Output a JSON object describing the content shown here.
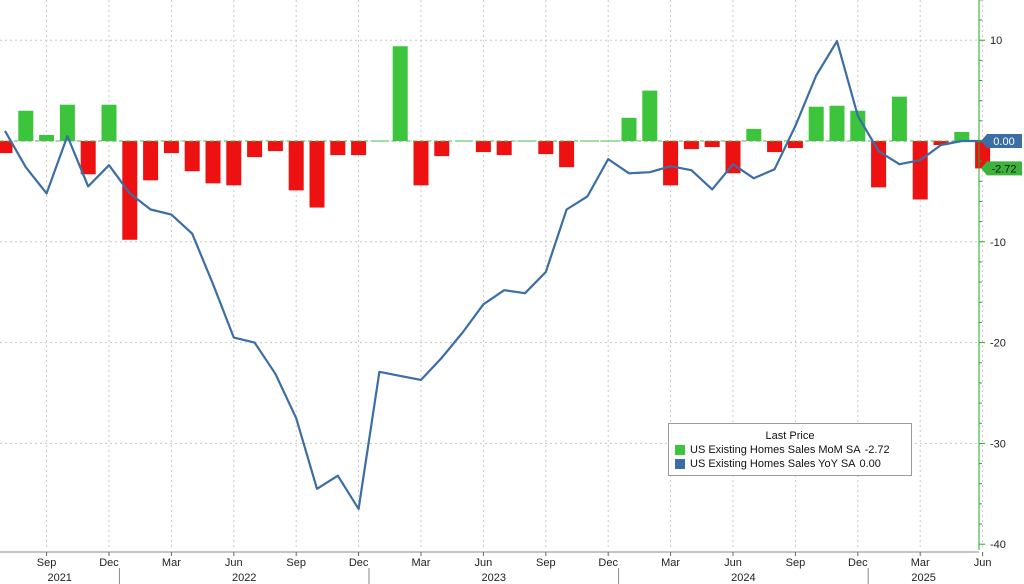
{
  "chart_data": {
    "type": "bar+line",
    "x_months": [
      "2021-07",
      "2021-08",
      "2021-09",
      "2021-10",
      "2021-11",
      "2021-12",
      "2022-01",
      "2022-02",
      "2022-03",
      "2022-04",
      "2022-05",
      "2022-06",
      "2022-07",
      "2022-08",
      "2022-09",
      "2022-10",
      "2022-11",
      "2022-12",
      "2023-01",
      "2023-02",
      "2023-03",
      "2023-04",
      "2023-05",
      "2023-06",
      "2023-07",
      "2023-08",
      "2023-09",
      "2023-10",
      "2023-11",
      "2023-12",
      "2024-01",
      "2024-02",
      "2024-03",
      "2024-04",
      "2024-05",
      "2024-06",
      "2024-07",
      "2024-08",
      "2024-09",
      "2024-10",
      "2024-11",
      "2024-12",
      "2025-01",
      "2025-02",
      "2025-03",
      "2025-04",
      "2025-05",
      "2025-06"
    ],
    "series": [
      {
        "name": "US Existing Homes Sales MoM SA",
        "kind": "bar",
        "last_value": "-2.72",
        "values": [
          -1.2,
          3.0,
          0.6,
          3.6,
          -3.3,
          3.6,
          -9.8,
          -3.9,
          -1.2,
          -3.0,
          -4.2,
          -4.4,
          -1.6,
          -1.0,
          -4.9,
          -6.6,
          -1.4,
          -1.4,
          0.0,
          9.4,
          -4.4,
          -1.5,
          0.0,
          -1.1,
          -1.4,
          0.0,
          -1.3,
          -2.6,
          0.0,
          0.0,
          2.3,
          5.0,
          -4.4,
          -0.8,
          -0.6,
          -3.2,
          1.2,
          -1.1,
          -0.7,
          3.4,
          3.5,
          3.0,
          -4.6,
          4.4,
          -5.8,
          -0.4,
          0.9,
          -2.72
        ]
      },
      {
        "name": "US Existing Homes Sales YoY SA",
        "kind": "line",
        "last_value": "0.00",
        "values": [
          1.0,
          -2.6,
          -5.2,
          0.5,
          -4.5,
          -2.4,
          -5.2,
          -6.8,
          -7.3,
          -9.2,
          -14.2,
          -19.5,
          -20.0,
          -23.1,
          -27.5,
          -34.5,
          -33.2,
          -36.5,
          -22.9,
          -23.3,
          -23.7,
          -21.5,
          -19.0,
          -16.2,
          -14.8,
          -15.1,
          -13.0,
          -6.8,
          -5.5,
          -1.8,
          -3.2,
          -3.1,
          -2.5,
          -2.9,
          -4.8,
          -2.3,
          -3.7,
          -2.8,
          1.5,
          6.5,
          9.9,
          2.5,
          -1.0,
          -2.3,
          -1.9,
          -0.4,
          0.0,
          0.0
        ]
      }
    ],
    "ylim": [
      -40,
      14
    ],
    "yticks": [
      "10",
      "0",
      "-10",
      "-20",
      "-30",
      "-40"
    ],
    "xticks": [
      {
        "month": "2021-09",
        "label": "Sep"
      },
      {
        "month": "2021-12",
        "label": "Dec"
      },
      {
        "month": "2022-03",
        "label": "Mar"
      },
      {
        "month": "2022-06",
        "label": "Jun"
      },
      {
        "month": "2022-09",
        "label": "Sep"
      },
      {
        "month": "2022-12",
        "label": "Dec"
      },
      {
        "month": "2023-03",
        "label": "Mar"
      },
      {
        "month": "2023-06",
        "label": "Jun"
      },
      {
        "month": "2023-09",
        "label": "Sep"
      },
      {
        "month": "2023-12",
        "label": "Dec"
      },
      {
        "month": "2024-03",
        "label": "Mar"
      },
      {
        "month": "2024-06",
        "label": "Jun"
      },
      {
        "month": "2024-09",
        "label": "Sep"
      },
      {
        "month": "2024-12",
        "label": "Dec"
      },
      {
        "month": "2025-03",
        "label": "Mar"
      },
      {
        "month": "2025-06",
        "label": "Jun"
      }
    ],
    "year_labels": [
      "2021",
      "2022",
      "2023",
      "2024",
      "2025"
    ],
    "grid": true,
    "legend_placement": "bottom-right",
    "colors": {
      "bar_positive": "#3cc43c",
      "bar_negative": "#ee1111",
      "line": "#3a6ea5",
      "grid": "#c8c8c8",
      "axis": "#22aa22",
      "yoy_tag": "#3a6ea5",
      "mom_tag": "#3cb43c"
    }
  },
  "legend": {
    "title": "Last Price",
    "mom_label": "US Existing Homes Sales MoM SA",
    "mom_value": "-2.72",
    "yoy_label": "US Existing Homes Sales YoY SA",
    "yoy_value": "0.00"
  },
  "tags": {
    "yoy": "0.00",
    "mom": "-2.72"
  }
}
